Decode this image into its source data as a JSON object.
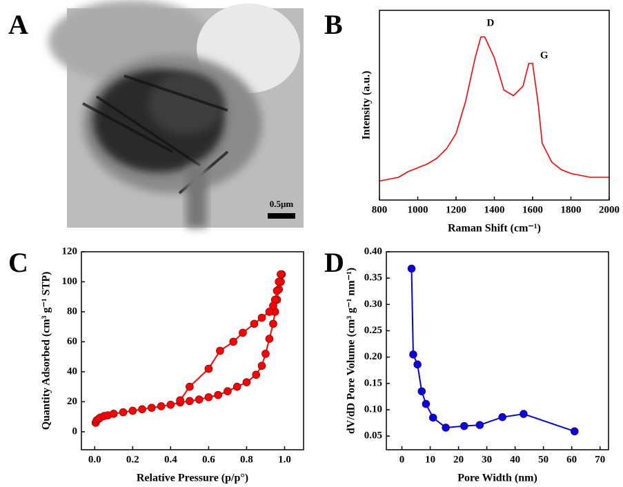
{
  "panel_labels": [
    "A",
    "B",
    "C",
    "D"
  ],
  "image": {
    "scale_bar": "0.5μm"
  },
  "chart_data": [
    {
      "type": "line",
      "xlabel": "Raman Shift (cm⁻¹)",
      "ylabel": "Intensity (a.u.)",
      "xlim": [
        800,
        2000
      ],
      "xticks": [
        800,
        1000,
        1200,
        1400,
        1600,
        1800,
        2000
      ],
      "ylim": [
        0,
        100
      ],
      "markers": false,
      "annotations": [
        {
          "text": "D",
          "x": 1380,
          "y": 93
        },
        {
          "text": "G",
          "x": 1660,
          "y": 76
        }
      ],
      "series": [
        {
          "color": "#ff0000",
          "x": [
            800,
            850,
            900,
            950,
            1000,
            1050,
            1100,
            1150,
            1200,
            1250,
            1300,
            1330,
            1350,
            1400,
            1450,
            1500,
            1550,
            1580,
            1600,
            1630,
            1650,
            1700,
            1750,
            1800,
            1850,
            1900,
            1950,
            2000
          ],
          "values": [
            10,
            11,
            12,
            15,
            17,
            19,
            22,
            27,
            35,
            52,
            75,
            86,
            86,
            75,
            58,
            55,
            60,
            72,
            72,
            50,
            30,
            20,
            16,
            14,
            13,
            12,
            12,
            12
          ]
        }
      ]
    },
    {
      "type": "line",
      "xlabel": "Relative Pressure (p/p°)",
      "ylabel": "Quantity Adsorbed (cm³ g⁻¹ STP)",
      "xlim": [
        -0.07,
        1.1
      ],
      "xticks": [
        {
          "value": 0,
          "label": "0.0"
        },
        0.2,
        0.4,
        0.6,
        0.8,
        {
          "value": 1,
          "label": "1.0"
        }
      ],
      "ylim": [
        -12,
        120
      ],
      "yticks": [
        0,
        20,
        40,
        60,
        80,
        100,
        120
      ],
      "markers": true,
      "series": [
        {
          "color": "#ff0000",
          "x": [
            0.005,
            0.01,
            0.02,
            0.03,
            0.05,
            0.07,
            0.1,
            0.15,
            0.2,
            0.25,
            0.3,
            0.35,
            0.4,
            0.45,
            0.5,
            0.55,
            0.6,
            0.65,
            0.7,
            0.75,
            0.8,
            0.85,
            0.88,
            0.9,
            0.92,
            0.94,
            0.95,
            0.96,
            0.97,
            0.98,
            0.985
          ],
          "values": [
            6,
            7.5,
            8.5,
            9.5,
            10.5,
            11,
            12,
            13,
            14,
            15,
            16,
            17,
            18,
            19.5,
            20.5,
            21.5,
            23,
            24.5,
            27,
            30,
            33,
            38,
            44,
            52,
            62,
            72,
            80,
            88,
            95,
            100,
            105
          ]
        },
        {
          "color": "#ff0000",
          "x": [
            0.98,
            0.97,
            0.96,
            0.95,
            0.94,
            0.92,
            0.88,
            0.84,
            0.78,
            0.73,
            0.66,
            0.6,
            0.5,
            0.45
          ],
          "values": [
            105,
            100,
            94,
            88,
            84,
            80,
            76,
            72,
            66,
            60,
            54,
            42,
            30,
            21
          ]
        }
      ]
    },
    {
      "type": "line",
      "xlabel": "Pore Width (nm)",
      "ylabel": "dV/dD Pore Volume (cm³ g⁻¹ nm⁻¹)",
      "xlim": [
        -5.5,
        73
      ],
      "xticks": [
        0,
        10,
        20,
        30,
        40,
        50,
        60,
        70
      ],
      "ylim": [
        0.024,
        0.4
      ],
      "yticks": [
        0.05,
        {
          "value": 0.1,
          "label": "0.10"
        },
        0.15,
        {
          "value": 0.2,
          "label": "0.20"
        },
        0.25,
        {
          "value": 0.3,
          "label": "0.30"
        },
        0.35,
        {
          "value": 0.4,
          "label": "0.40"
        }
      ],
      "markers": true,
      "series": [
        {
          "color": "#0000ee",
          "x": [
            3.4,
            4,
            5.5,
            7,
            8.5,
            11,
            15.5,
            22,
            27.5,
            35.5,
            43,
            61
          ],
          "values": [
            0.368,
            0.205,
            0.186,
            0.135,
            0.111,
            0.085,
            0.066,
            0.069,
            0.071,
            0.086,
            0.092,
            0.059
          ]
        }
      ]
    }
  ]
}
